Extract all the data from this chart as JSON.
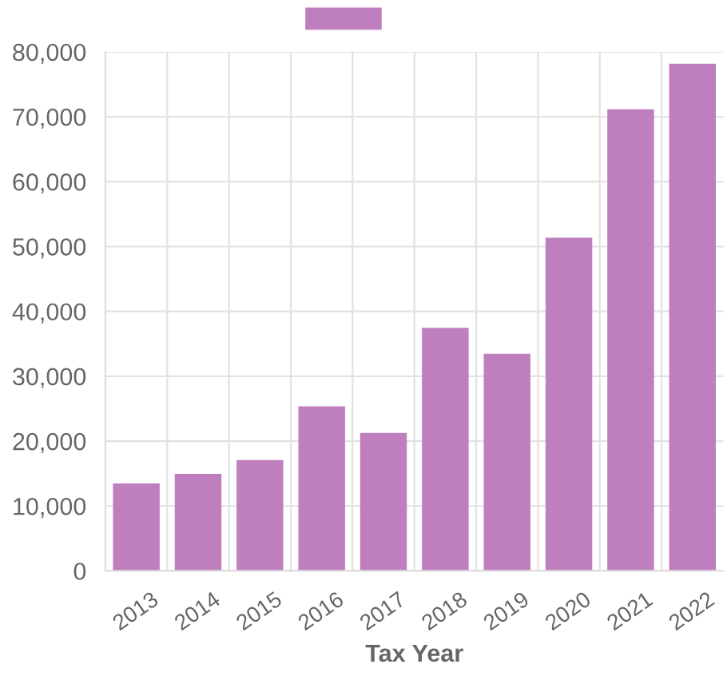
{
  "chart_data": {
    "type": "bar",
    "xlabel": "Tax Year",
    "categories": [
      "2013",
      "2014",
      "2015",
      "2016",
      "2017",
      "2018",
      "2019",
      "2020",
      "2021",
      "2022"
    ],
    "series": [
      {
        "color": "#bf7fbf",
        "values": [
          13300,
          14800,
          16900,
          25200,
          21100,
          37300,
          33300,
          51200,
          71000,
          78000
        ]
      }
    ],
    "ylim": [
      0,
      80000
    ],
    "yticks": [
      {
        "value": 0,
        "label": "0"
      },
      {
        "value": 10000,
        "label": "10,000"
      },
      {
        "value": 20000,
        "label": "20,000"
      },
      {
        "value": 30000,
        "label": "30,000"
      },
      {
        "value": 40000,
        "label": "40,000"
      },
      {
        "value": 50000,
        "label": "50,000"
      },
      {
        "value": 60000,
        "label": "60,000"
      },
      {
        "value": 70000,
        "label": "70,000"
      },
      {
        "value": 80000,
        "label": "80,000"
      }
    ],
    "grid": true
  }
}
